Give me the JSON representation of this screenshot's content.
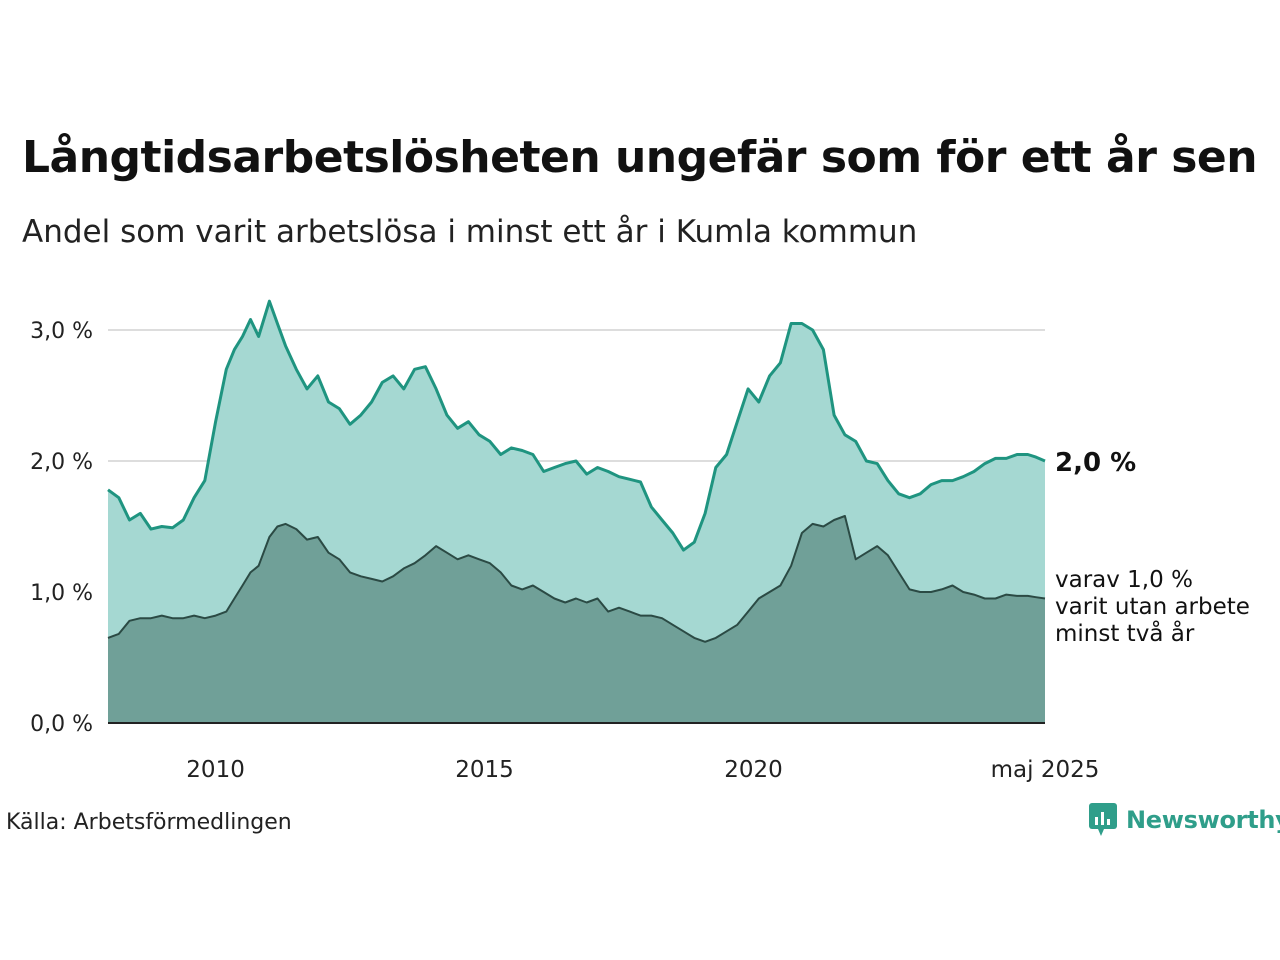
{
  "title": "Långtidsarbetslösheten ungefär som för ett år sen",
  "subtitle": "Andel som varit arbetslösa i minst ett år i Kumla kommun",
  "source": "Källa: Arbetsförmedlingen",
  "logo_text": "Newsworthy",
  "end_label_main": "2,0 %",
  "end_label_sub": [
    "varav 1,0 %",
    "varit utan arbete",
    "minst två år"
  ],
  "colors": {
    "main_line": "#1f9480",
    "main_fill": "#a5d8d2",
    "sub_line": "#2b4a44",
    "sub_fill": "#70a098",
    "grid": "#dddddd",
    "logo": "#2f9e8a"
  },
  "chart_data": {
    "type": "area",
    "title": "Långtidsarbetslösheten ungefär som för ett år sen",
    "subtitle": "Andel som varit arbetslösa i minst ett år i Kumla kommun",
    "x_range": [
      2008.0,
      2025.42
    ],
    "ylim": [
      0,
      3.3
    ],
    "y_ticks": [
      0,
      1,
      2,
      3
    ],
    "y_tick_labels": [
      "0,0 %",
      "1,0 %",
      "2,0 %",
      "3,0 %"
    ],
    "x_ticks": [
      2010,
      2015,
      2020,
      2025.42
    ],
    "x_tick_labels": [
      "2010",
      "2015",
      "2020",
      "maj 2025"
    ],
    "grid": true,
    "series": [
      {
        "name": "Minst ett år",
        "x": [
          2008.0,
          2008.2,
          2008.4,
          2008.6,
          2008.8,
          2009.0,
          2009.2,
          2009.4,
          2009.6,
          2009.8,
          2010.0,
          2010.2,
          2010.35,
          2010.5,
          2010.65,
          2010.8,
          2011.0,
          2011.15,
          2011.3,
          2011.5,
          2011.7,
          2011.9,
          2012.1,
          2012.3,
          2012.5,
          2012.7,
          2012.9,
          2013.1,
          2013.3,
          2013.5,
          2013.7,
          2013.9,
          2014.1,
          2014.3,
          2014.5,
          2014.7,
          2014.9,
          2015.1,
          2015.3,
          2015.5,
          2015.7,
          2015.9,
          2016.1,
          2016.3,
          2016.5,
          2016.7,
          2016.9,
          2017.1,
          2017.3,
          2017.5,
          2017.7,
          2017.9,
          2018.1,
          2018.3,
          2018.5,
          2018.7,
          2018.9,
          2019.1,
          2019.3,
          2019.5,
          2019.7,
          2019.9,
          2020.1,
          2020.3,
          2020.5,
          2020.7,
          2020.9,
          2021.1,
          2021.3,
          2021.5,
          2021.7,
          2021.9,
          2022.1,
          2022.3,
          2022.5,
          2022.7,
          2022.9,
          2023.1,
          2023.3,
          2023.5,
          2023.7,
          2023.9,
          2024.1,
          2024.3,
          2024.5,
          2024.7,
          2024.9,
          2025.1,
          2025.25,
          2025.42
        ],
        "values": [
          1.78,
          1.72,
          1.55,
          1.6,
          1.48,
          1.5,
          1.49,
          1.55,
          1.72,
          1.85,
          2.3,
          2.7,
          2.85,
          2.95,
          3.08,
          2.95,
          3.22,
          3.05,
          2.88,
          2.7,
          2.55,
          2.65,
          2.45,
          2.4,
          2.28,
          2.35,
          2.45,
          2.6,
          2.65,
          2.55,
          2.7,
          2.72,
          2.55,
          2.35,
          2.25,
          2.3,
          2.2,
          2.15,
          2.05,
          2.1,
          2.08,
          2.05,
          1.92,
          1.95,
          1.98,
          2.0,
          1.9,
          1.95,
          1.92,
          1.88,
          1.86,
          1.84,
          1.65,
          1.55,
          1.45,
          1.32,
          1.38,
          1.6,
          1.95,
          2.05,
          2.3,
          2.55,
          2.45,
          2.65,
          2.75,
          3.05,
          3.05,
          3.0,
          2.85,
          2.35,
          2.2,
          2.15,
          2.0,
          1.98,
          1.85,
          1.75,
          1.72,
          1.75,
          1.82,
          1.85,
          1.85,
          1.88,
          1.92,
          1.98,
          2.02,
          2.02,
          2.05,
          2.05,
          2.03,
          2.0
        ]
      },
      {
        "name": "Minst två år",
        "x": [
          2008.0,
          2008.2,
          2008.4,
          2008.6,
          2008.8,
          2009.0,
          2009.2,
          2009.4,
          2009.6,
          2009.8,
          2010.0,
          2010.2,
          2010.35,
          2010.5,
          2010.65,
          2010.8,
          2011.0,
          2011.15,
          2011.3,
          2011.5,
          2011.7,
          2011.9,
          2012.1,
          2012.3,
          2012.5,
          2012.7,
          2012.9,
          2013.1,
          2013.3,
          2013.5,
          2013.7,
          2013.9,
          2014.1,
          2014.3,
          2014.5,
          2014.7,
          2014.9,
          2015.1,
          2015.3,
          2015.5,
          2015.7,
          2015.9,
          2016.1,
          2016.3,
          2016.5,
          2016.7,
          2016.9,
          2017.1,
          2017.3,
          2017.5,
          2017.7,
          2017.9,
          2018.1,
          2018.3,
          2018.5,
          2018.7,
          2018.9,
          2019.1,
          2019.3,
          2019.5,
          2019.7,
          2019.9,
          2020.1,
          2020.3,
          2020.5,
          2020.7,
          2020.9,
          2021.1,
          2021.3,
          2021.5,
          2021.7,
          2021.9,
          2022.1,
          2022.3,
          2022.5,
          2022.7,
          2022.9,
          2023.1,
          2023.3,
          2023.5,
          2023.7,
          2023.9,
          2024.1,
          2024.3,
          2024.5,
          2024.7,
          2024.9,
          2025.1,
          2025.25,
          2025.42
        ],
        "values": [
          0.65,
          0.68,
          0.78,
          0.8,
          0.8,
          0.82,
          0.8,
          0.8,
          0.82,
          0.8,
          0.82,
          0.85,
          0.95,
          1.05,
          1.15,
          1.2,
          1.42,
          1.5,
          1.52,
          1.48,
          1.4,
          1.42,
          1.3,
          1.25,
          1.15,
          1.12,
          1.1,
          1.08,
          1.12,
          1.18,
          1.22,
          1.28,
          1.35,
          1.3,
          1.25,
          1.28,
          1.25,
          1.22,
          1.15,
          1.05,
          1.02,
          1.05,
          1.0,
          0.95,
          0.92,
          0.95,
          0.92,
          0.95,
          0.85,
          0.88,
          0.85,
          0.82,
          0.82,
          0.8,
          0.75,
          0.7,
          0.65,
          0.62,
          0.65,
          0.7,
          0.75,
          0.85,
          0.95,
          1.0,
          1.05,
          1.2,
          1.45,
          1.52,
          1.5,
          1.55,
          1.58,
          1.25,
          1.3,
          1.35,
          1.28,
          1.15,
          1.02,
          1.0,
          1.0,
          1.02,
          1.05,
          1.0,
          0.98,
          0.95,
          0.95,
          0.98,
          0.97,
          0.97,
          0.96,
          0.95
        ]
      }
    ]
  }
}
